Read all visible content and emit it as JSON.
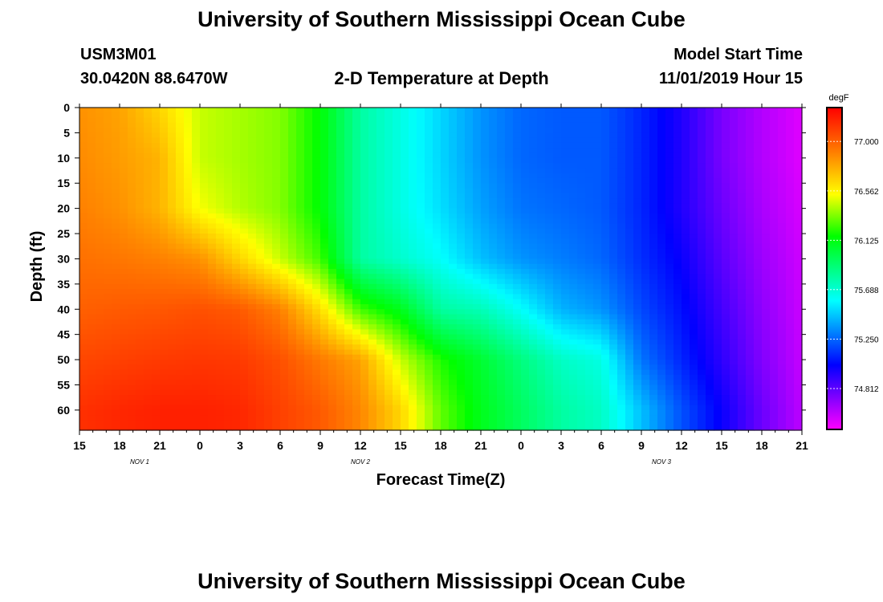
{
  "page": {
    "title_top": "University of Southern Mississippi Ocean Cube",
    "title_bottom": "University of Southern Mississippi Ocean Cube",
    "station_id": "USM3M01",
    "station_coords": "30.0420N 88.6470W",
    "subtitle": "2-D Temperature at Depth",
    "model_start_label": "Model Start Time",
    "model_start_value": "11/01/2019 Hour 15"
  },
  "chart_data": {
    "type": "heatmap",
    "title": "2-D Temperature at Depth",
    "xlabel": "Forecast Time(Z)",
    "ylabel": "Depth (ft)",
    "x_range_hours": [
      0,
      54
    ],
    "x_ticks": [
      {
        "h": 0,
        "label": "15"
      },
      {
        "h": 3,
        "label": "18"
      },
      {
        "h": 6,
        "label": "21"
      },
      {
        "h": 9,
        "label": "0"
      },
      {
        "h": 12,
        "label": "3"
      },
      {
        "h": 15,
        "label": "6"
      },
      {
        "h": 18,
        "label": "9"
      },
      {
        "h": 21,
        "label": "12"
      },
      {
        "h": 24,
        "label": "15"
      },
      {
        "h": 27,
        "label": "18"
      },
      {
        "h": 30,
        "label": "21"
      },
      {
        "h": 33,
        "label": "0"
      },
      {
        "h": 36,
        "label": "3"
      },
      {
        "h": 39,
        "label": "6"
      },
      {
        "h": 42,
        "label": "9"
      },
      {
        "h": 45,
        "label": "12"
      },
      {
        "h": 48,
        "label": "15"
      },
      {
        "h": 51,
        "label": "18"
      },
      {
        "h": 54,
        "label": "21"
      }
    ],
    "day_labels": [
      {
        "h": 4.5,
        "label": "NOV 1"
      },
      {
        "h": 21,
        "label": "NOV 2"
      },
      {
        "h": 43.5,
        "label": "NOV 3"
      }
    ],
    "y_range_ft": [
      0,
      64
    ],
    "y_ticks": [
      0,
      5,
      10,
      15,
      20,
      25,
      30,
      35,
      40,
      45,
      50,
      55,
      60
    ],
    "colorbar": {
      "unit": "degF",
      "range": [
        74.45,
        77.3
      ],
      "tick_labels": [
        "77.000",
        "76.562",
        "76.125",
        "75.688",
        "75.250",
        "74.812"
      ]
    },
    "temperature_grid_degF": {
      "hours": [
        0,
        3,
        6,
        9,
        12,
        15,
        18,
        21,
        24,
        27,
        30,
        33,
        36,
        39,
        42,
        45,
        48,
        51,
        54
      ],
      "depths_ft": [
        0,
        10,
        20,
        30,
        40,
        50,
        60
      ],
      "values": [
        [
          76.85,
          76.8,
          76.65,
          76.45,
          76.4,
          76.35,
          76.15,
          75.8,
          75.65,
          75.5,
          75.35,
          75.25,
          75.22,
          75.22,
          75.1,
          74.95,
          74.75,
          74.62,
          74.52
        ],
        [
          76.87,
          76.82,
          76.75,
          76.45,
          76.4,
          76.35,
          76.15,
          75.8,
          75.65,
          75.5,
          75.35,
          75.25,
          75.22,
          75.22,
          75.1,
          74.95,
          74.75,
          74.62,
          74.52
        ],
        [
          76.9,
          76.85,
          76.75,
          76.52,
          76.42,
          76.35,
          76.15,
          75.8,
          75.65,
          75.52,
          75.38,
          75.28,
          75.25,
          75.22,
          75.1,
          74.95,
          74.78,
          74.64,
          74.54
        ],
        [
          76.95,
          76.93,
          76.9,
          76.85,
          76.65,
          76.45,
          76.25,
          75.8,
          75.7,
          75.6,
          75.45,
          75.35,
          75.3,
          75.25,
          75.12,
          75.0,
          74.82,
          74.67,
          74.56
        ],
        [
          77.0,
          77.02,
          77.03,
          77.05,
          77.02,
          76.9,
          76.62,
          76.25,
          76.1,
          75.8,
          75.75,
          75.6,
          75.42,
          75.35,
          75.18,
          75.05,
          74.87,
          74.7,
          74.57
        ],
        [
          77.08,
          77.1,
          77.12,
          77.13,
          77.12,
          77.05,
          76.92,
          76.8,
          76.45,
          76.2,
          76.05,
          75.88,
          75.72,
          75.65,
          75.28,
          75.1,
          74.92,
          74.73,
          74.58
        ],
        [
          77.15,
          77.18,
          77.2,
          77.2,
          77.18,
          77.1,
          77.02,
          76.88,
          76.65,
          76.3,
          76.1,
          75.95,
          75.8,
          75.72,
          75.45,
          75.2,
          75.0,
          74.78,
          74.6
        ]
      ]
    }
  },
  "colors": {
    "frame": "#000000",
    "background": "#ffffff"
  }
}
